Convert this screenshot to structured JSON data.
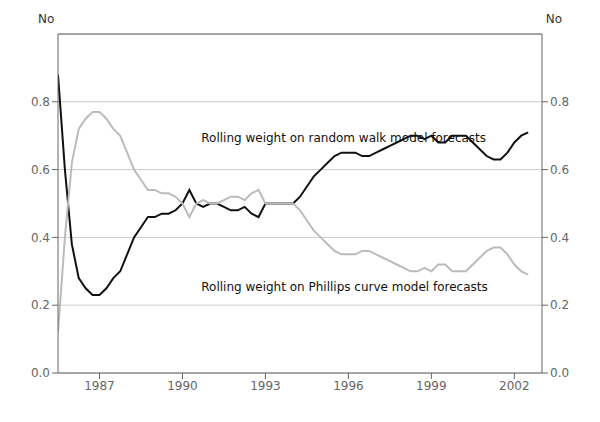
{
  "chart_data": {
    "type": "line",
    "ylabel": "No",
    "y2label": "No",
    "xlim": [
      1985.5,
      2003.0
    ],
    "ylim": [
      0.0,
      1.0
    ],
    "xticks": [
      1987,
      1990,
      1993,
      1996,
      1999,
      2002
    ],
    "yticks": [
      {
        "value": 0.0,
        "label": "0.0"
      },
      0.2,
      0.4,
      0.6,
      0.8
    ],
    "y2lim": [
      0.0,
      1.0
    ],
    "y2ticks": [
      {
        "value": 0.0,
        "label": "0.0"
      },
      0.2,
      0.4,
      0.6,
      0.8
    ],
    "grid": "y",
    "x": [
      1985.5,
      1985.75,
      1986.0,
      1986.25,
      1986.5,
      1986.75,
      1987.0,
      1987.25,
      1987.5,
      1987.75,
      1988.0,
      1988.25,
      1988.5,
      1988.75,
      1989.0,
      1989.25,
      1989.5,
      1989.75,
      1990.0,
      1990.25,
      1990.5,
      1990.75,
      1991.0,
      1991.25,
      1991.5,
      1991.75,
      1992.0,
      1992.25,
      1992.5,
      1992.75,
      1993.0,
      1993.25,
      1993.5,
      1993.75,
      1994.0,
      1994.25,
      1994.5,
      1994.75,
      1995.0,
      1995.25,
      1995.5,
      1995.75,
      1996.0,
      1996.25,
      1996.5,
      1996.75,
      1997.0,
      1997.25,
      1997.5,
      1997.75,
      1998.0,
      1998.25,
      1998.5,
      1998.75,
      1999.0,
      1999.25,
      1999.5,
      1999.75,
      2000.0,
      2000.25,
      2000.5,
      2000.75,
      2001.0,
      2001.25,
      2001.5,
      2001.75,
      2002.0,
      2002.25,
      2002.5
    ],
    "series": [
      {
        "color": "#111111",
        "values": [
          0.88,
          0.6,
          0.38,
          0.28,
          0.25,
          0.23,
          0.23,
          0.25,
          0.28,
          0.3,
          0.35,
          0.4,
          0.43,
          0.46,
          0.46,
          0.47,
          0.47,
          0.48,
          0.5,
          0.54,
          0.5,
          0.49,
          0.5,
          0.5,
          0.49,
          0.48,
          0.48,
          0.49,
          0.47,
          0.46,
          0.5,
          0.5,
          0.5,
          0.5,
          0.5,
          0.52,
          0.55,
          0.58,
          0.6,
          0.62,
          0.64,
          0.65,
          0.65,
          0.65,
          0.64,
          0.64,
          0.65,
          0.66,
          0.67,
          0.68,
          0.69,
          0.7,
          0.7,
          0.69,
          0.7,
          0.68,
          0.68,
          0.7,
          0.7,
          0.7,
          0.68,
          0.66,
          0.64,
          0.63,
          0.63,
          0.65,
          0.68,
          0.7,
          0.71
        ]
      },
      {
        "color": "#bbbbbb",
        "values": [
          0.12,
          0.4,
          0.62,
          0.72,
          0.75,
          0.77,
          0.77,
          0.75,
          0.72,
          0.7,
          0.65,
          0.6,
          0.57,
          0.54,
          0.54,
          0.53,
          0.53,
          0.52,
          0.5,
          0.46,
          0.5,
          0.51,
          0.5,
          0.5,
          0.51,
          0.52,
          0.52,
          0.51,
          0.53,
          0.54,
          0.5,
          0.5,
          0.5,
          0.5,
          0.5,
          0.48,
          0.45,
          0.42,
          0.4,
          0.38,
          0.36,
          0.35,
          0.35,
          0.35,
          0.36,
          0.36,
          0.35,
          0.34,
          0.33,
          0.32,
          0.31,
          0.3,
          0.3,
          0.31,
          0.3,
          0.32,
          0.32,
          0.3,
          0.3,
          0.3,
          0.32,
          0.34,
          0.36,
          0.37,
          0.37,
          0.35,
          0.32,
          0.3,
          0.29
        ]
      }
    ],
    "annotations": [
      {
        "text": "Rolling weight on random walk model forecasts",
        "x": 1990.5,
        "y": 0.695
      },
      {
        "text": "Rolling weight on Phillips curve model forecasts",
        "x": 1990.5,
        "y": 0.255
      }
    ]
  }
}
